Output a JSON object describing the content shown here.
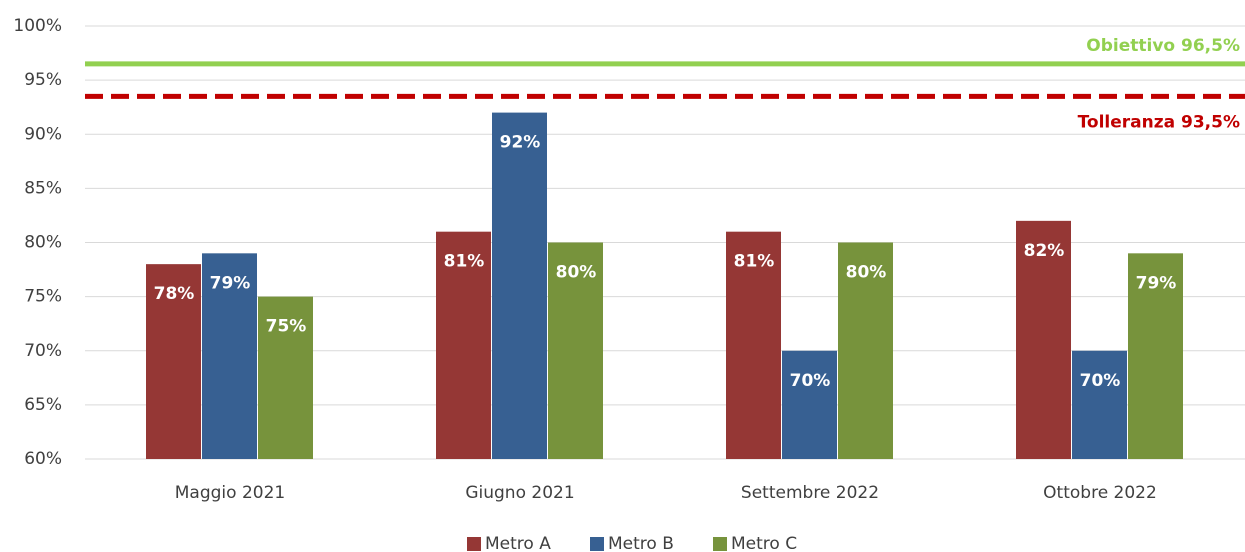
{
  "chart_data": {
    "type": "bar",
    "categories": [
      "Maggio 2021",
      "Giugno 2021",
      "Settembre 2022",
      "Ottobre 2022"
    ],
    "series": [
      {
        "name": "Metro A",
        "color": "#953735",
        "values": [
          78,
          81,
          81,
          82
        ],
        "value_labels": [
          "78%",
          "81%",
          "81%",
          "82%"
        ]
      },
      {
        "name": "Metro B",
        "color": "#376092",
        "values": [
          79,
          92,
          70,
          70
        ],
        "value_labels": [
          "79%",
          "92%",
          "70%",
          "70%"
        ]
      },
      {
        "name": "Metro C",
        "color": "#77933c",
        "values": [
          75,
          80,
          80,
          79
        ],
        "value_labels": [
          "75%",
          "80%",
          "80%",
          "79%"
        ]
      }
    ],
    "ylim": [
      60,
      100
    ],
    "yticks": [
      {
        "value": 60,
        "label": "60%"
      },
      {
        "value": 65,
        "label": "65%"
      },
      {
        "value": 70,
        "label": "70%"
      },
      {
        "value": 75,
        "label": "75%"
      },
      {
        "value": 80,
        "label": "80%"
      },
      {
        "value": 85,
        "label": "85%"
      },
      {
        "value": 90,
        "label": "90%"
      },
      {
        "value": 95,
        "label": "95%"
      },
      {
        "value": 100,
        "label": "100%"
      }
    ],
    "grid": true,
    "reference_lines": [
      {
        "label": "Obiettivo 96,5%",
        "value": 96.5,
        "color": "#92d050",
        "style": "solid"
      },
      {
        "label": "Tolleranza 93,5%",
        "value": 93.5,
        "color": "#c00000",
        "style": "dashed"
      }
    ],
    "legend": "bottom"
  }
}
